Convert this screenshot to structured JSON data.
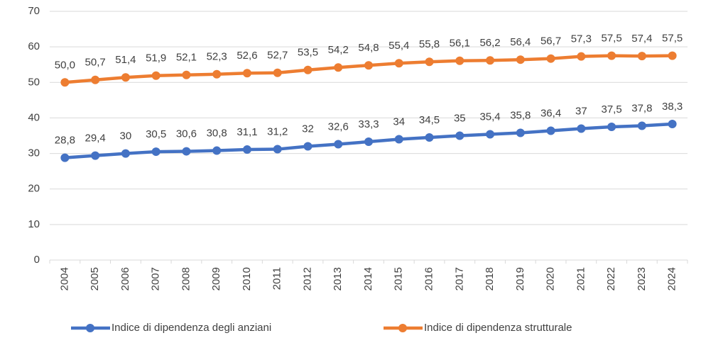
{
  "chart_data": {
    "type": "line",
    "categories": [
      "2004",
      "2005",
      "2006",
      "2007",
      "2008",
      "2009",
      "2010",
      "2011",
      "2012",
      "2013",
      "2014",
      "2015",
      "2016",
      "2017",
      "2018",
      "2019",
      "2020",
      "2021",
      "2022",
      "2023",
      "2024"
    ],
    "series": [
      {
        "name": "Indice di dipendenza degli anziani",
        "color": "#4472c4",
        "values": [
          28.8,
          29.4,
          30,
          30.5,
          30.6,
          30.8,
          31.1,
          31.2,
          32,
          32.6,
          33.3,
          34,
          34.5,
          35,
          35.4,
          35.8,
          36.4,
          37,
          37.5,
          37.8,
          38.3
        ],
        "value_labels": [
          "28,8",
          "29,4",
          "30",
          "30,5",
          "30,6",
          "30,8",
          "31,1",
          "31,2",
          "32",
          "32,6",
          "33,3",
          "34",
          "34,5",
          "35",
          "35,4",
          "35,8",
          "36,4",
          "37",
          "37,5",
          "37,8",
          "38,3"
        ]
      },
      {
        "name": "Indice di dipendenza strutturale",
        "color": "#ed7d31",
        "values": [
          50.0,
          50.7,
          51.4,
          51.9,
          52.1,
          52.3,
          52.6,
          52.7,
          53.5,
          54.2,
          54.8,
          55.4,
          55.8,
          56.1,
          56.2,
          56.4,
          56.7,
          57.3,
          57.5,
          57.4,
          57.5
        ],
        "value_labels": [
          "50,0",
          "50,7",
          "51,4",
          "51,9",
          "52,1",
          "52,3",
          "52,6",
          "52,7",
          "53,5",
          "54,2",
          "54,8",
          "55,4",
          "55,8",
          "56,1",
          "56,2",
          "56,4",
          "56,7",
          "57,3",
          "57,5",
          "57,4",
          "57,5"
        ]
      }
    ],
    "ylim": [
      0,
      70
    ],
    "yticks": [
      0,
      10,
      20,
      30,
      40,
      50,
      60,
      70
    ],
    "grid": true,
    "legend": "bottom"
  }
}
